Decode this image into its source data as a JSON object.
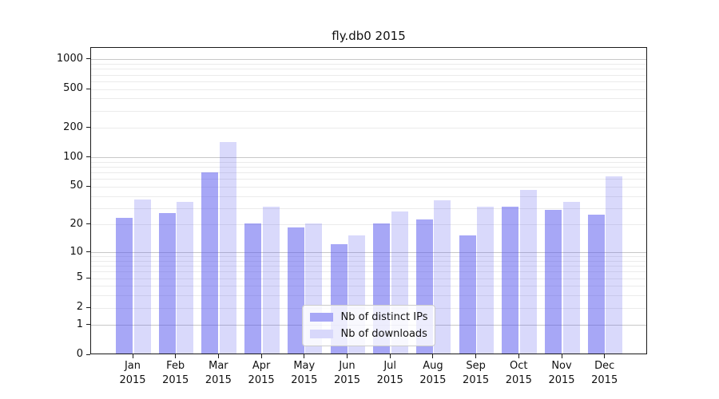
{
  "title": "fly.db0 2015",
  "colors": {
    "ips_bar": "rgba(80,80,238,0.5)",
    "downloads_bar": "rgba(80,80,238,0.22)",
    "ips_swatch": "#a7a7f6",
    "downloads_swatch": "#d8d8fb",
    "grid_major": "#c8c8c8",
    "grid_minor": "#ebebeb",
    "spine": "#1a1a1a"
  },
  "legend": {
    "position": "lower center"
  },
  "chart_data": {
    "type": "bar",
    "title": "fly.db0 2015",
    "categories": [
      "Jan",
      "Feb",
      "Mar",
      "Apr",
      "May",
      "Jun",
      "Jul",
      "Aug",
      "Sep",
      "Oct",
      "Nov",
      "Dec"
    ],
    "year": "2015",
    "series": [
      {
        "name": "Nb of distinct IPs",
        "values": [
          23,
          26,
          68,
          20,
          18,
          12,
          20,
          22,
          15,
          30,
          28,
          25
        ]
      },
      {
        "name": "Nb of downloads",
        "values": [
          36,
          34,
          140,
          30,
          20,
          15,
          27,
          35,
          30,
          45,
          34,
          62
        ]
      }
    ],
    "yscale": "log-like (position proportional to log10(1+x))",
    "y_ticks": [
      0,
      1,
      2,
      5,
      10,
      20,
      50,
      100,
      200,
      500,
      1000
    ],
    "ylim": [
      0,
      1000
    ],
    "grid": "on",
    "legend_position": "lower center"
  }
}
